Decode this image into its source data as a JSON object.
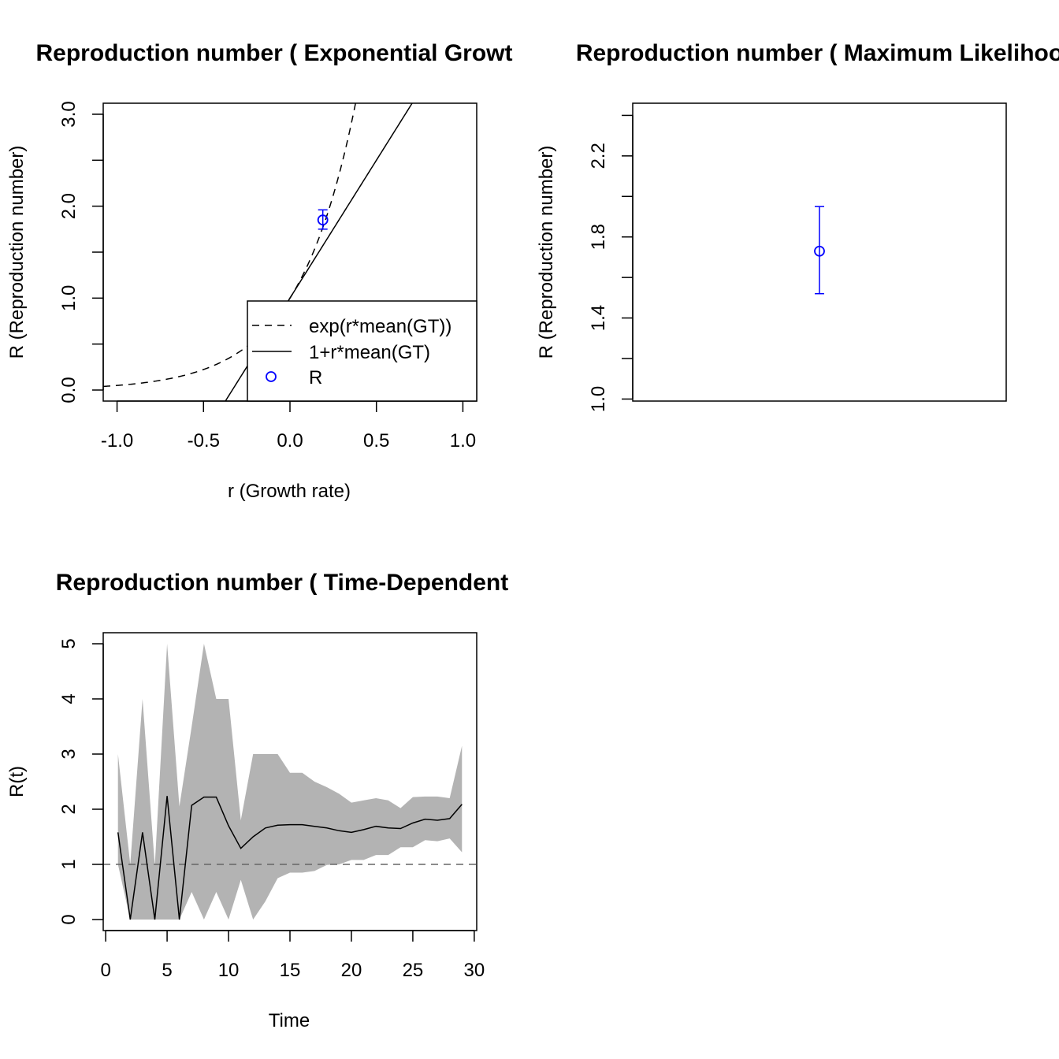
{
  "chart_data": [
    {
      "type": "line",
      "title": "Reproduction number ( Exponential Growt",
      "xlabel": "r (Growth rate)",
      "ylabel": "R (Reproduction number)",
      "xlim": [
        -1.08,
        1.08
      ],
      "ylim": [
        -0.12,
        3.12
      ],
      "x_ticks": [
        -1.0,
        -0.5,
        0.0,
        0.5,
        1.0
      ],
      "x_tick_labels": [
        "-1.0",
        "-0.5",
        "0.0",
        "0.5",
        "1.0"
      ],
      "y_ticks": [
        0.0,
        0.5,
        1.0,
        1.5,
        2.0,
        2.5,
        3.0
      ],
      "y_tick_labels": [
        "0.0",
        "",
        "1.0",
        "",
        "2.0",
        "",
        "3.0"
      ],
      "mean_GT": 3.0,
      "series": [
        {
          "name": "exp(r*mean(GT))",
          "function": "exp(r*mean(GT))",
          "linestyle": "dashed",
          "color": "#000000"
        },
        {
          "name": "1+r*mean(GT)",
          "function": "1+r*mean(GT)",
          "linestyle": "solid",
          "color": "#000000"
        }
      ],
      "point": {
        "name": "R",
        "r": 0.19,
        "R": 1.85,
        "lower": 1.75,
        "upper": 1.96,
        "color": "#0000ff"
      },
      "legend": {
        "position": "bottom-right",
        "entries": [
          "exp(r*mean(GT))",
          "1+r*mean(GT)",
          "R"
        ]
      }
    },
    {
      "type": "scatter",
      "title": "Reproduction number ( Maximum Likelihoo",
      "ylabel": "R (Reproduction number)",
      "ylim": [
        0.99,
        2.46
      ],
      "y_ticks": [
        1.0,
        1.2,
        1.4,
        1.6,
        1.8,
        2.0,
        2.2,
        2.4
      ],
      "y_tick_labels": [
        "1.0",
        "",
        "1.4",
        "",
        "1.8",
        "",
        "2.2",
        ""
      ],
      "point": {
        "value": 1.73,
        "lower": 1.52,
        "upper": 1.95,
        "color": "#0000ff"
      }
    },
    {
      "type": "area",
      "title": "Reproduction number ( Time-Dependent",
      "xlabel": "Time",
      "ylabel": "R(t)",
      "xlim": [
        -0.2,
        30.2
      ],
      "ylim": [
        -0.2,
        5.2
      ],
      "x_ticks": [
        0,
        5,
        10,
        15,
        20,
        25,
        30
      ],
      "x_tick_labels": [
        "0",
        "5",
        "10",
        "15",
        "20",
        "25",
        "30"
      ],
      "y_ticks": [
        0,
        1,
        2,
        3,
        4,
        5
      ],
      "y_tick_labels": [
        "0",
        "1",
        "2",
        "3",
        "4",
        "5"
      ],
      "reference_line": {
        "y": 1,
        "linestyle": "dashed",
        "color": "#666666"
      },
      "band_color": "#b3b3b3",
      "x": [
        1,
        2,
        3,
        4,
        5,
        6,
        7,
        8,
        9,
        10,
        11,
        12,
        13,
        14,
        15,
        16,
        17,
        18,
        19,
        20,
        21,
        22,
        23,
        24,
        25,
        26,
        27,
        28,
        29
      ],
      "series": [
        {
          "role": "estimate",
          "values": [
            1.58,
            0,
            1.58,
            0,
            2.24,
            0,
            2.07,
            2.22,
            2.22,
            1.7,
            1.29,
            1.5,
            1.66,
            1.71,
            1.72,
            1.72,
            1.69,
            1.66,
            1.61,
            1.58,
            1.63,
            1.69,
            1.66,
            1.65,
            1.75,
            1.82,
            1.8,
            1.83,
            2.09
          ]
        },
        {
          "role": "upper",
          "values": [
            3.0,
            1.0,
            4.0,
            0.98,
            5.0,
            2.05,
            3.5,
            5.0,
            4.0,
            4.0,
            1.8,
            3.0,
            3.0,
            3.0,
            2.66,
            2.66,
            2.5,
            2.4,
            2.28,
            2.12,
            2.16,
            2.2,
            2.16,
            2.02,
            2.22,
            2.23,
            2.23,
            2.2,
            3.15
          ]
        },
        {
          "role": "lower",
          "values": [
            1.0,
            0,
            0,
            0,
            0,
            0,
            0.5,
            0,
            0.5,
            0,
            0.72,
            0,
            0.33,
            0.75,
            0.85,
            0.85,
            0.88,
            0.99,
            1.0,
            1.08,
            1.08,
            1.17,
            1.17,
            1.31,
            1.31,
            1.44,
            1.42,
            1.47,
            1.22
          ]
        }
      ]
    }
  ]
}
